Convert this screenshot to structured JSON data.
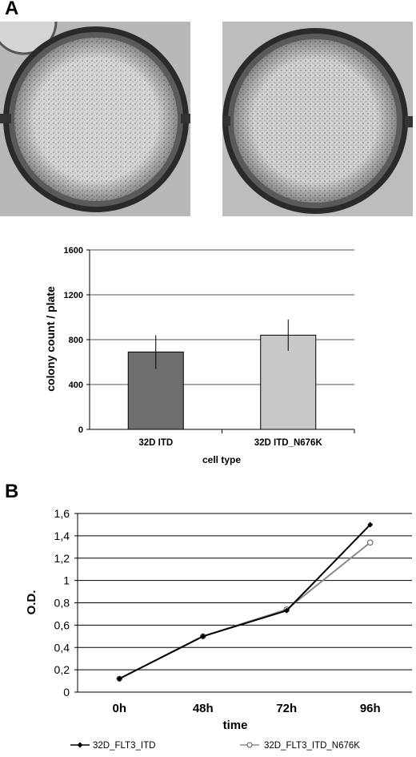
{
  "panels": {
    "a": "A",
    "b": "B"
  },
  "plate_images": [
    {
      "name": "plate-photo-32d-itd"
    },
    {
      "name": "plate-photo-32d-itd-n676k"
    }
  ],
  "chart_data": [
    {
      "type": "bar",
      "categories": [
        "32D ITD",
        "32D ITD_N676K"
      ],
      "values": [
        690,
        840
      ],
      "errors": [
        150,
        140
      ],
      "colors": [
        "#6e6e6e",
        "#c8c8c8"
      ],
      "ylabel": "colony count / plate",
      "xlabel": "cell type",
      "ylim": [
        0,
        1600
      ],
      "yticks": [
        "0",
        "400",
        "800",
        "1200",
        "1600"
      ],
      "grid": true
    },
    {
      "type": "line",
      "categories": [
        "0h",
        "48h",
        "72h",
        "96h"
      ],
      "series": [
        {
          "name": "32D_FLT3_ITD",
          "values": [
            0.12,
            0.5,
            0.73,
            1.5
          ],
          "color": "#000000",
          "marker": "filled-diamond"
        },
        {
          "name": "32D_FLT3_ITD_N676K",
          "values": [
            0.12,
            0.5,
            0.74,
            1.34
          ],
          "color": "#8a8a8a",
          "marker": "open-circle"
        }
      ],
      "ylabel": "O.D.",
      "xlabel": "time",
      "ylim": [
        0,
        1.6
      ],
      "yticks": [
        "0",
        "0,2",
        "0,4",
        "0,6",
        "0,8",
        "1",
        "1,2",
        "1,4",
        "1,6"
      ],
      "grid": true,
      "legend": "bottom"
    }
  ]
}
